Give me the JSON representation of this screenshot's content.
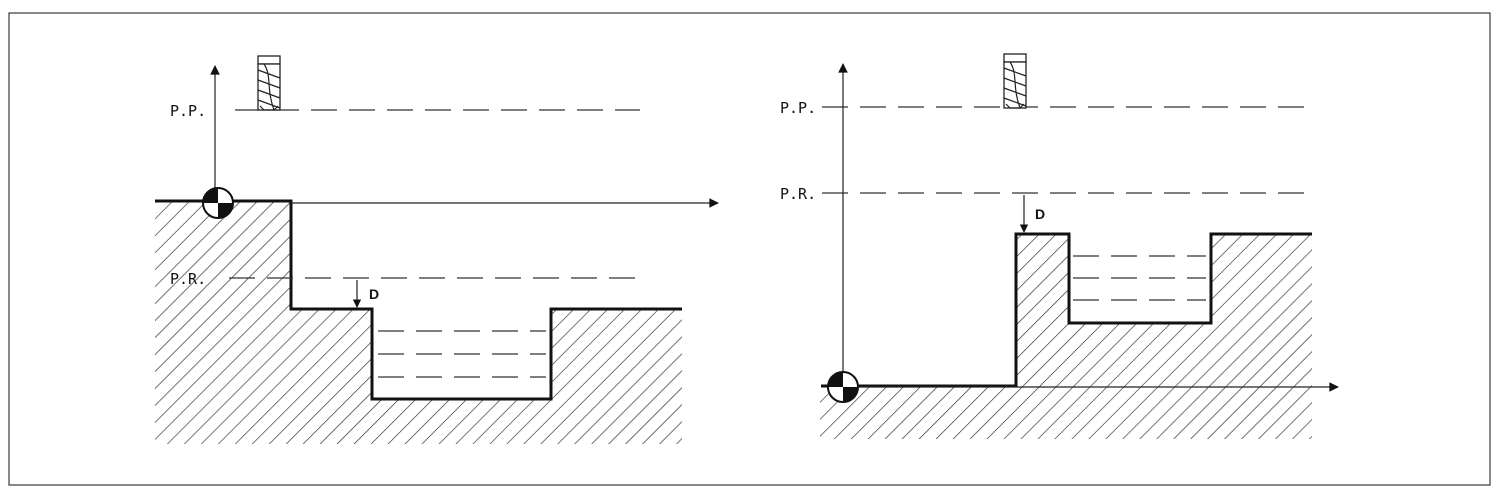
{
  "figure": {
    "left": {
      "pp_label": "P.P.",
      "pr_label": "P.R.",
      "d_label": "D",
      "tool_icon": "end-mill-icon",
      "origin_icon": "origin-marker-icon"
    },
    "right": {
      "pp_label": "P.P.",
      "pr_label": "P.R.",
      "d_label": "D",
      "tool_icon": "end-mill-icon",
      "origin_icon": "origin-marker-icon"
    }
  }
}
